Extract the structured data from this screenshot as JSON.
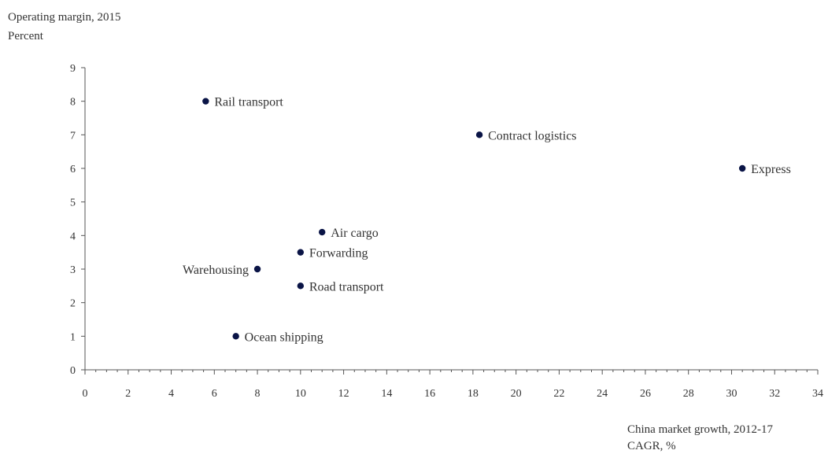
{
  "chart_data": {
    "type": "scatter",
    "title": "",
    "ylabel": "Operating margin, 2015",
    "ylabel_unit": "Percent",
    "xlabel": "China market growth, 2012-17",
    "xlabel_unit": "CAGR, %",
    "xlim": [
      0,
      34
    ],
    "ylim": [
      0,
      9
    ],
    "xticks": [
      0,
      2,
      4,
      6,
      8,
      10,
      12,
      14,
      16,
      18,
      20,
      22,
      24,
      26,
      28,
      30,
      32,
      34
    ],
    "yticks": [
      0,
      1,
      2,
      3,
      4,
      5,
      6,
      7,
      8,
      9
    ],
    "grid": false,
    "legend": "none",
    "point_color": "#0a1446",
    "points": [
      {
        "label": "Rail transport",
        "x": 5.6,
        "y": 8.0,
        "label_side": "right"
      },
      {
        "label": "Contract logistics",
        "x": 18.3,
        "y": 7.0,
        "label_side": "right"
      },
      {
        "label": "Express",
        "x": 30.5,
        "y": 6.0,
        "label_side": "right"
      },
      {
        "label": "Air cargo",
        "x": 11.0,
        "y": 4.1,
        "label_side": "right"
      },
      {
        "label": "Forwarding",
        "x": 10.0,
        "y": 3.5,
        "label_side": "right"
      },
      {
        "label": "Warehousing",
        "x": 8.0,
        "y": 3.0,
        "label_side": "left"
      },
      {
        "label": "Road transport",
        "x": 10.0,
        "y": 2.5,
        "label_side": "right"
      },
      {
        "label": "Ocean shipping",
        "x": 7.0,
        "y": 1.0,
        "label_side": "right"
      }
    ]
  }
}
